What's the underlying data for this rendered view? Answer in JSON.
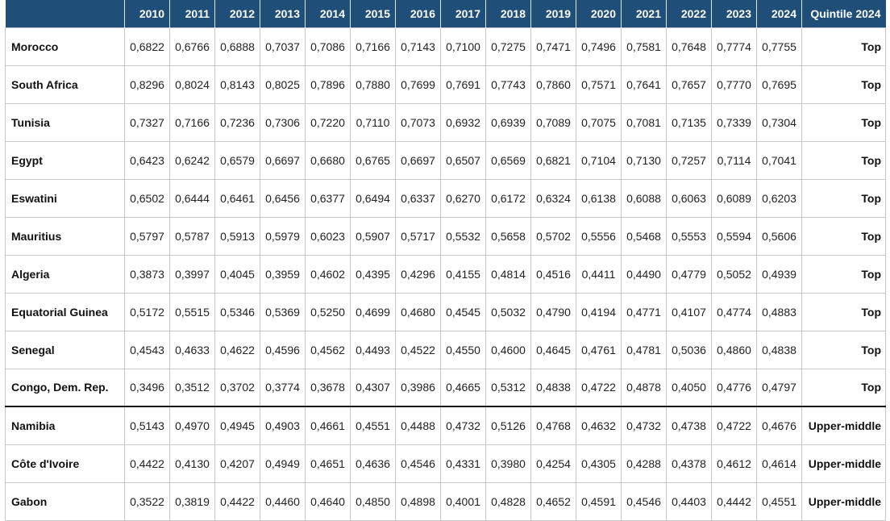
{
  "table": {
    "header": [
      "",
      "2010",
      "2011",
      "2012",
      "2013",
      "2014",
      "2015",
      "2016",
      "2017",
      "2018",
      "2019",
      "2020",
      "2021",
      "2022",
      "2023",
      "2024",
      "Quintile 2024"
    ],
    "rows": [
      {
        "country": "Morocco",
        "values": [
          "0,6822",
          "0,6766",
          "0,6888",
          "0,7037",
          "0,7086",
          "0,7166",
          "0,7143",
          "0,7100",
          "0,7275",
          "0,7471",
          "0,7496",
          "0,7581",
          "0,7648",
          "0,7774",
          "0,7755"
        ],
        "quintile": "Top"
      },
      {
        "country": "South Africa",
        "values": [
          "0,8296",
          "0,8024",
          "0,8143",
          "0,8025",
          "0,7896",
          "0,7880",
          "0,7699",
          "0,7691",
          "0,7743",
          "0,7860",
          "0,7571",
          "0,7641",
          "0,7657",
          "0,7770",
          "0,7695"
        ],
        "quintile": "Top"
      },
      {
        "country": "Tunisia",
        "values": [
          "0,7327",
          "0,7166",
          "0,7236",
          "0,7306",
          "0,7220",
          "0,7110",
          "0,7073",
          "0,6932",
          "0,6939",
          "0,7089",
          "0,7075",
          "0,7081",
          "0,7135",
          "0,7339",
          "0,7304"
        ],
        "quintile": "Top"
      },
      {
        "country": "Egypt",
        "values": [
          "0,6423",
          "0,6242",
          "0,6579",
          "0,6697",
          "0,6680",
          "0,6765",
          "0,6697",
          "0,6507",
          "0,6569",
          "0,6821",
          "0,7104",
          "0,7130",
          "0,7257",
          "0,7114",
          "0,7041"
        ],
        "quintile": "Top"
      },
      {
        "country": "Eswatini",
        "values": [
          "0,6502",
          "0,6444",
          "0,6461",
          "0,6456",
          "0,6377",
          "0,6494",
          "0,6337",
          "0,6270",
          "0,6172",
          "0,6324",
          "0,6138",
          "0,6088",
          "0,6063",
          "0,6089",
          "0,6203"
        ],
        "quintile": "Top"
      },
      {
        "country": "Mauritius",
        "values": [
          "0,5797",
          "0,5787",
          "0,5913",
          "0,5979",
          "0,6023",
          "0,5907",
          "0,5717",
          "0,5532",
          "0,5658",
          "0,5702",
          "0,5556",
          "0,5468",
          "0,5553",
          "0,5594",
          "0,5606"
        ],
        "quintile": "Top"
      },
      {
        "country": "Algeria",
        "values": [
          "0,3873",
          "0,3997",
          "0,4045",
          "0,3959",
          "0,4602",
          "0,4395",
          "0,4296",
          "0,4155",
          "0,4814",
          "0,4516",
          "0,4411",
          "0,4490",
          "0,4779",
          "0,5052",
          "0,4939"
        ],
        "quintile": "Top"
      },
      {
        "country": "Equatorial Guinea",
        "values": [
          "0,5172",
          "0,5515",
          "0,5346",
          "0,5369",
          "0,5250",
          "0,4699",
          "0,4680",
          "0,4545",
          "0,5032",
          "0,4790",
          "0,4194",
          "0,4771",
          "0,4107",
          "0,4774",
          "0,4883"
        ],
        "quintile": "Top"
      },
      {
        "country": "Senegal",
        "values": [
          "0,4543",
          "0,4633",
          "0,4622",
          "0,4596",
          "0,4562",
          "0,4493",
          "0,4522",
          "0,4550",
          "0,4600",
          "0,4645",
          "0,4761",
          "0,4781",
          "0,5036",
          "0,4860",
          "0,4838"
        ],
        "quintile": "Top"
      },
      {
        "country": "Congo, Dem. Rep.",
        "values": [
          "0,3496",
          "0,3512",
          "0,3702",
          "0,3774",
          "0,3678",
          "0,4307",
          "0,3986",
          "0,4665",
          "0,5312",
          "0,4838",
          "0,4722",
          "0,4878",
          "0,4050",
          "0,4776",
          "0,4797"
        ],
        "quintile": "Top"
      },
      {
        "country": "Namibia",
        "values": [
          "0,5143",
          "0,4970",
          "0,4945",
          "0,4903",
          "0,4661",
          "0,4551",
          "0,4488",
          "0,4732",
          "0,5126",
          "0,4768",
          "0,4632",
          "0,4732",
          "0,4738",
          "0,4722",
          "0,4676"
        ],
        "quintile": "Upper-middle",
        "group_start": true
      },
      {
        "country": "Côte d'Ivoire",
        "values": [
          "0,4422",
          "0,4130",
          "0,4207",
          "0,4949",
          "0,4651",
          "0,4636",
          "0,4546",
          "0,4331",
          "0,3980",
          "0,4254",
          "0,4305",
          "0,4288",
          "0,4378",
          "0,4612",
          "0,4614"
        ],
        "quintile": "Upper-middle"
      },
      {
        "country": "Gabon",
        "values": [
          "0,3522",
          "0,3819",
          "0,4422",
          "0,4460",
          "0,4640",
          "0,4850",
          "0,4898",
          "0,4001",
          "0,4828",
          "0,4652",
          "0,4591",
          "0,4546",
          "0,4403",
          "0,4442",
          "0,4551"
        ],
        "quintile": "Upper-middle"
      }
    ]
  }
}
